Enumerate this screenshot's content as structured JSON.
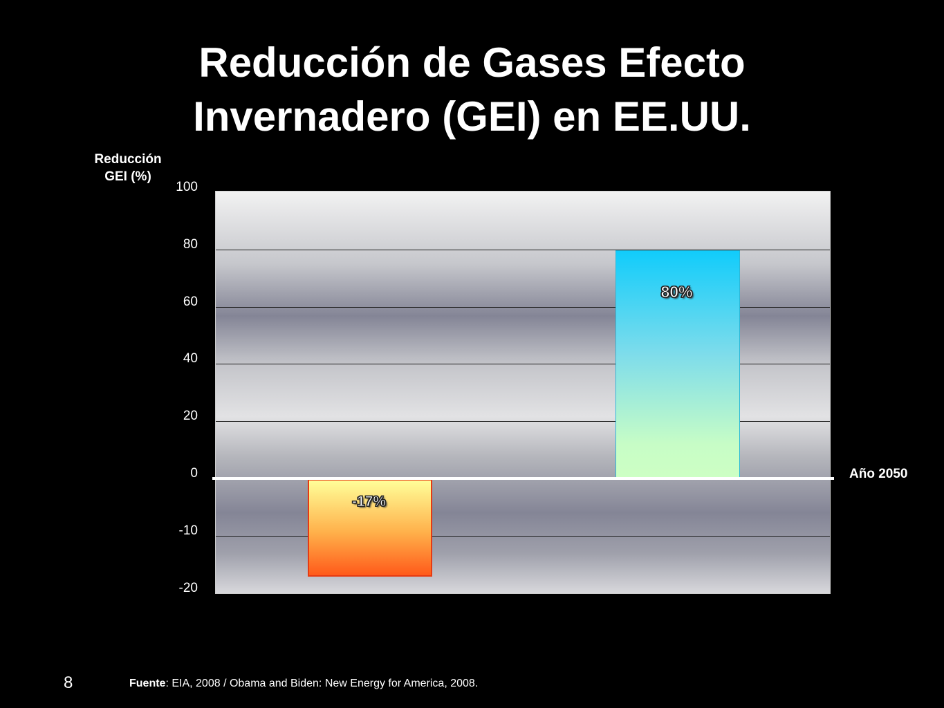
{
  "slide": {
    "title_line1": "Reducción de Gases Efecto",
    "title_line2": "Invernadero (GEI) en EE.UU.",
    "number": "8",
    "source_label": "Fuente",
    "source_text": ": EIA, 2008 / Obama and Biden: New Energy for America, 2008."
  },
  "chart_data": {
    "type": "bar",
    "title": "",
    "ylabel_line1": "Reducción",
    "ylabel_line2": "GEI (%)",
    "xlabel": "Año 2050",
    "y_ticks": [
      100,
      80,
      60,
      40,
      20,
      0,
      -10,
      -20
    ],
    "grid": true,
    "series": [
      {
        "value": -17,
        "label": "-17%",
        "color_top": "#ffff99",
        "color_bottom": "#ff5a1a"
      },
      {
        "value": 80,
        "label": "80%",
        "color_top": "#11ccfb",
        "color_bottom": "#cdffc4"
      }
    ]
  }
}
